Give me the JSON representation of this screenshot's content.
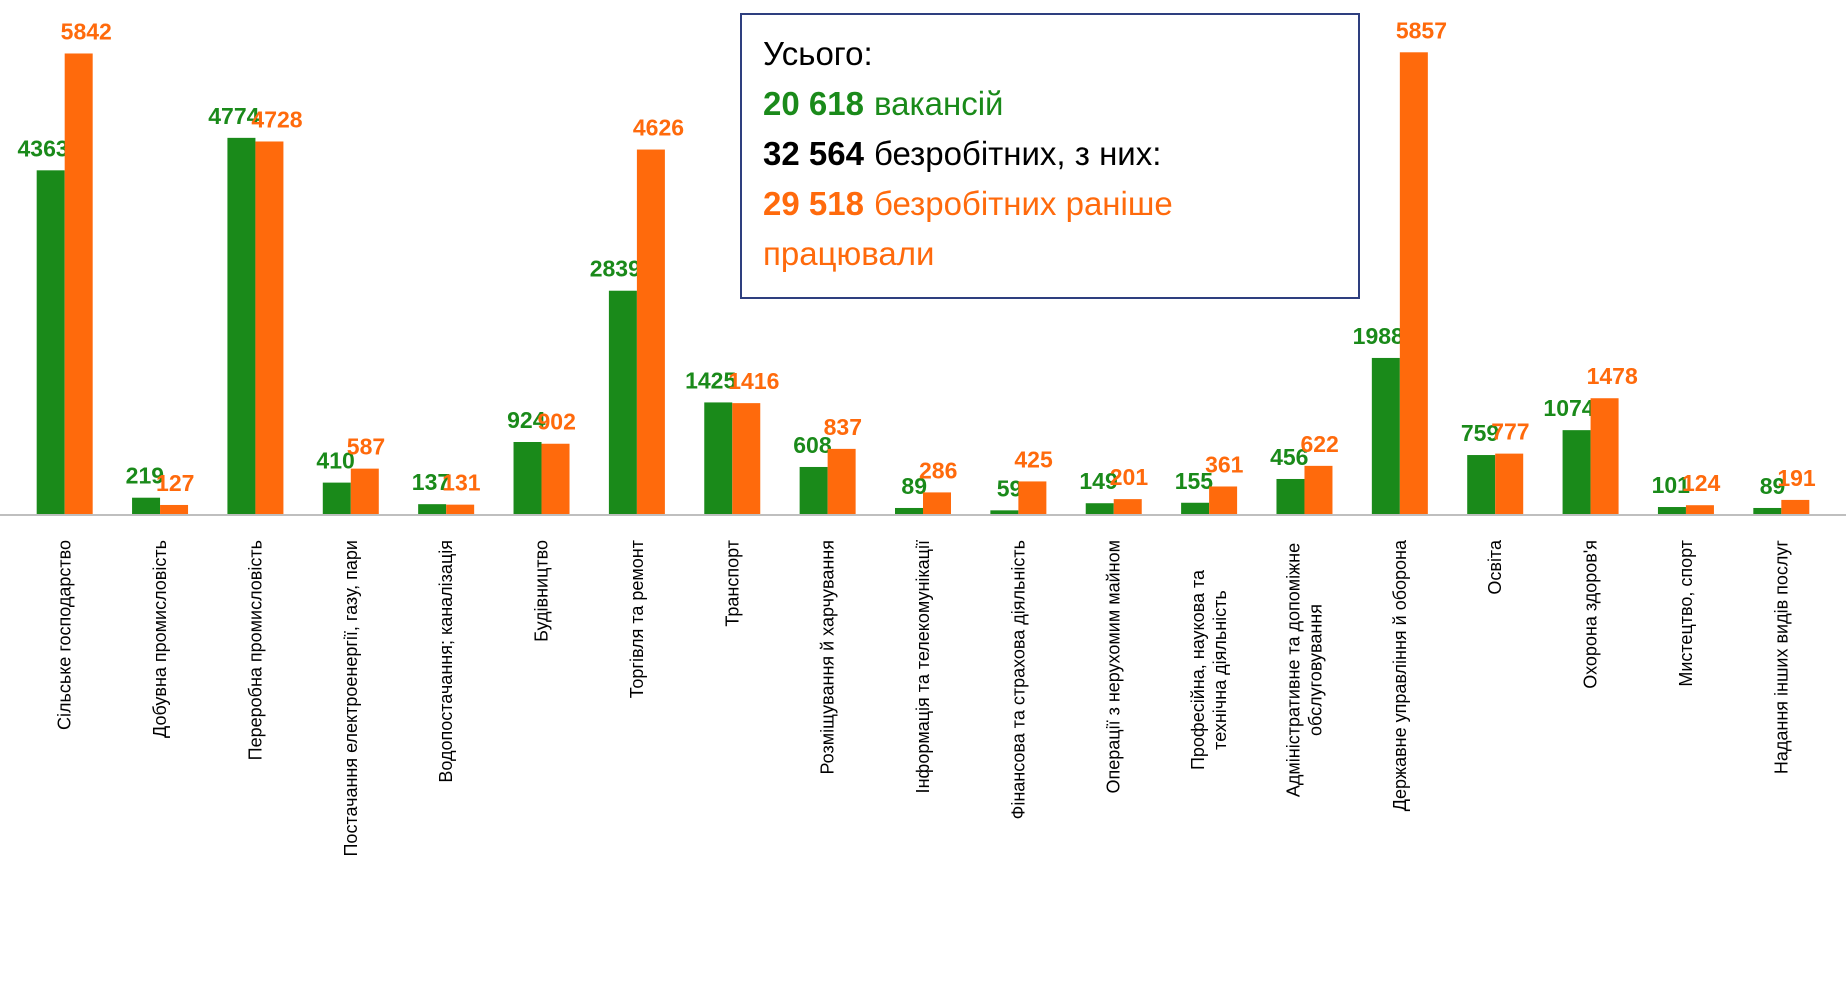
{
  "chart_data": {
    "type": "bar",
    "categories": [
      "Сільське господарство",
      "Добувна промисловість",
      "Переробна промисловість",
      "Постачання електроенергії, газу, пари",
      "Водопостачання; каналізація",
      "Будівництво",
      "Торгівля та ремонт",
      "Транспорт",
      "Розміщування й харчування",
      "Інформація та телекомунікації",
      "Фінансова та страхова діяльність",
      "Операції з нерухомим майном",
      "Професійна, наукова та технічна діяльність",
      "Адміністративне та допоміжне обслуговування",
      "Державне управління й оборона",
      "Освіта",
      "Охорона здоров'я",
      "Мистецтво, спорт",
      "Надання інших видів послуг"
    ],
    "series": [
      {
        "color": "#1a8a1a",
        "values": [
          4363,
          219,
          4774,
          410,
          137,
          924,
          2839,
          1425,
          608,
          89,
          59,
          149,
          155,
          456,
          1988,
          759,
          1074,
          101,
          89
        ]
      },
      {
        "color": "#ff6a0c",
        "values": [
          5842,
          127,
          4728,
          587,
          131,
          902,
          4626,
          1416,
          837,
          286,
          425,
          201,
          361,
          622,
          5857,
          777,
          1478,
          124,
          191
        ]
      }
    ],
    "ylim": [
      0,
      6000
    ],
    "summary": {
      "title": "Усього:",
      "lines": [
        {
          "number": "20 618",
          "text": "вакансій",
          "color": "#1a8a1a"
        },
        {
          "number": "32 564",
          "text": "безробітних, з них:",
          "color": "#000000"
        },
        {
          "number": "29 518",
          "text": "безробітних раніше",
          "color": "#ff6a0c"
        }
      ],
      "continuation": "працювали"
    }
  }
}
